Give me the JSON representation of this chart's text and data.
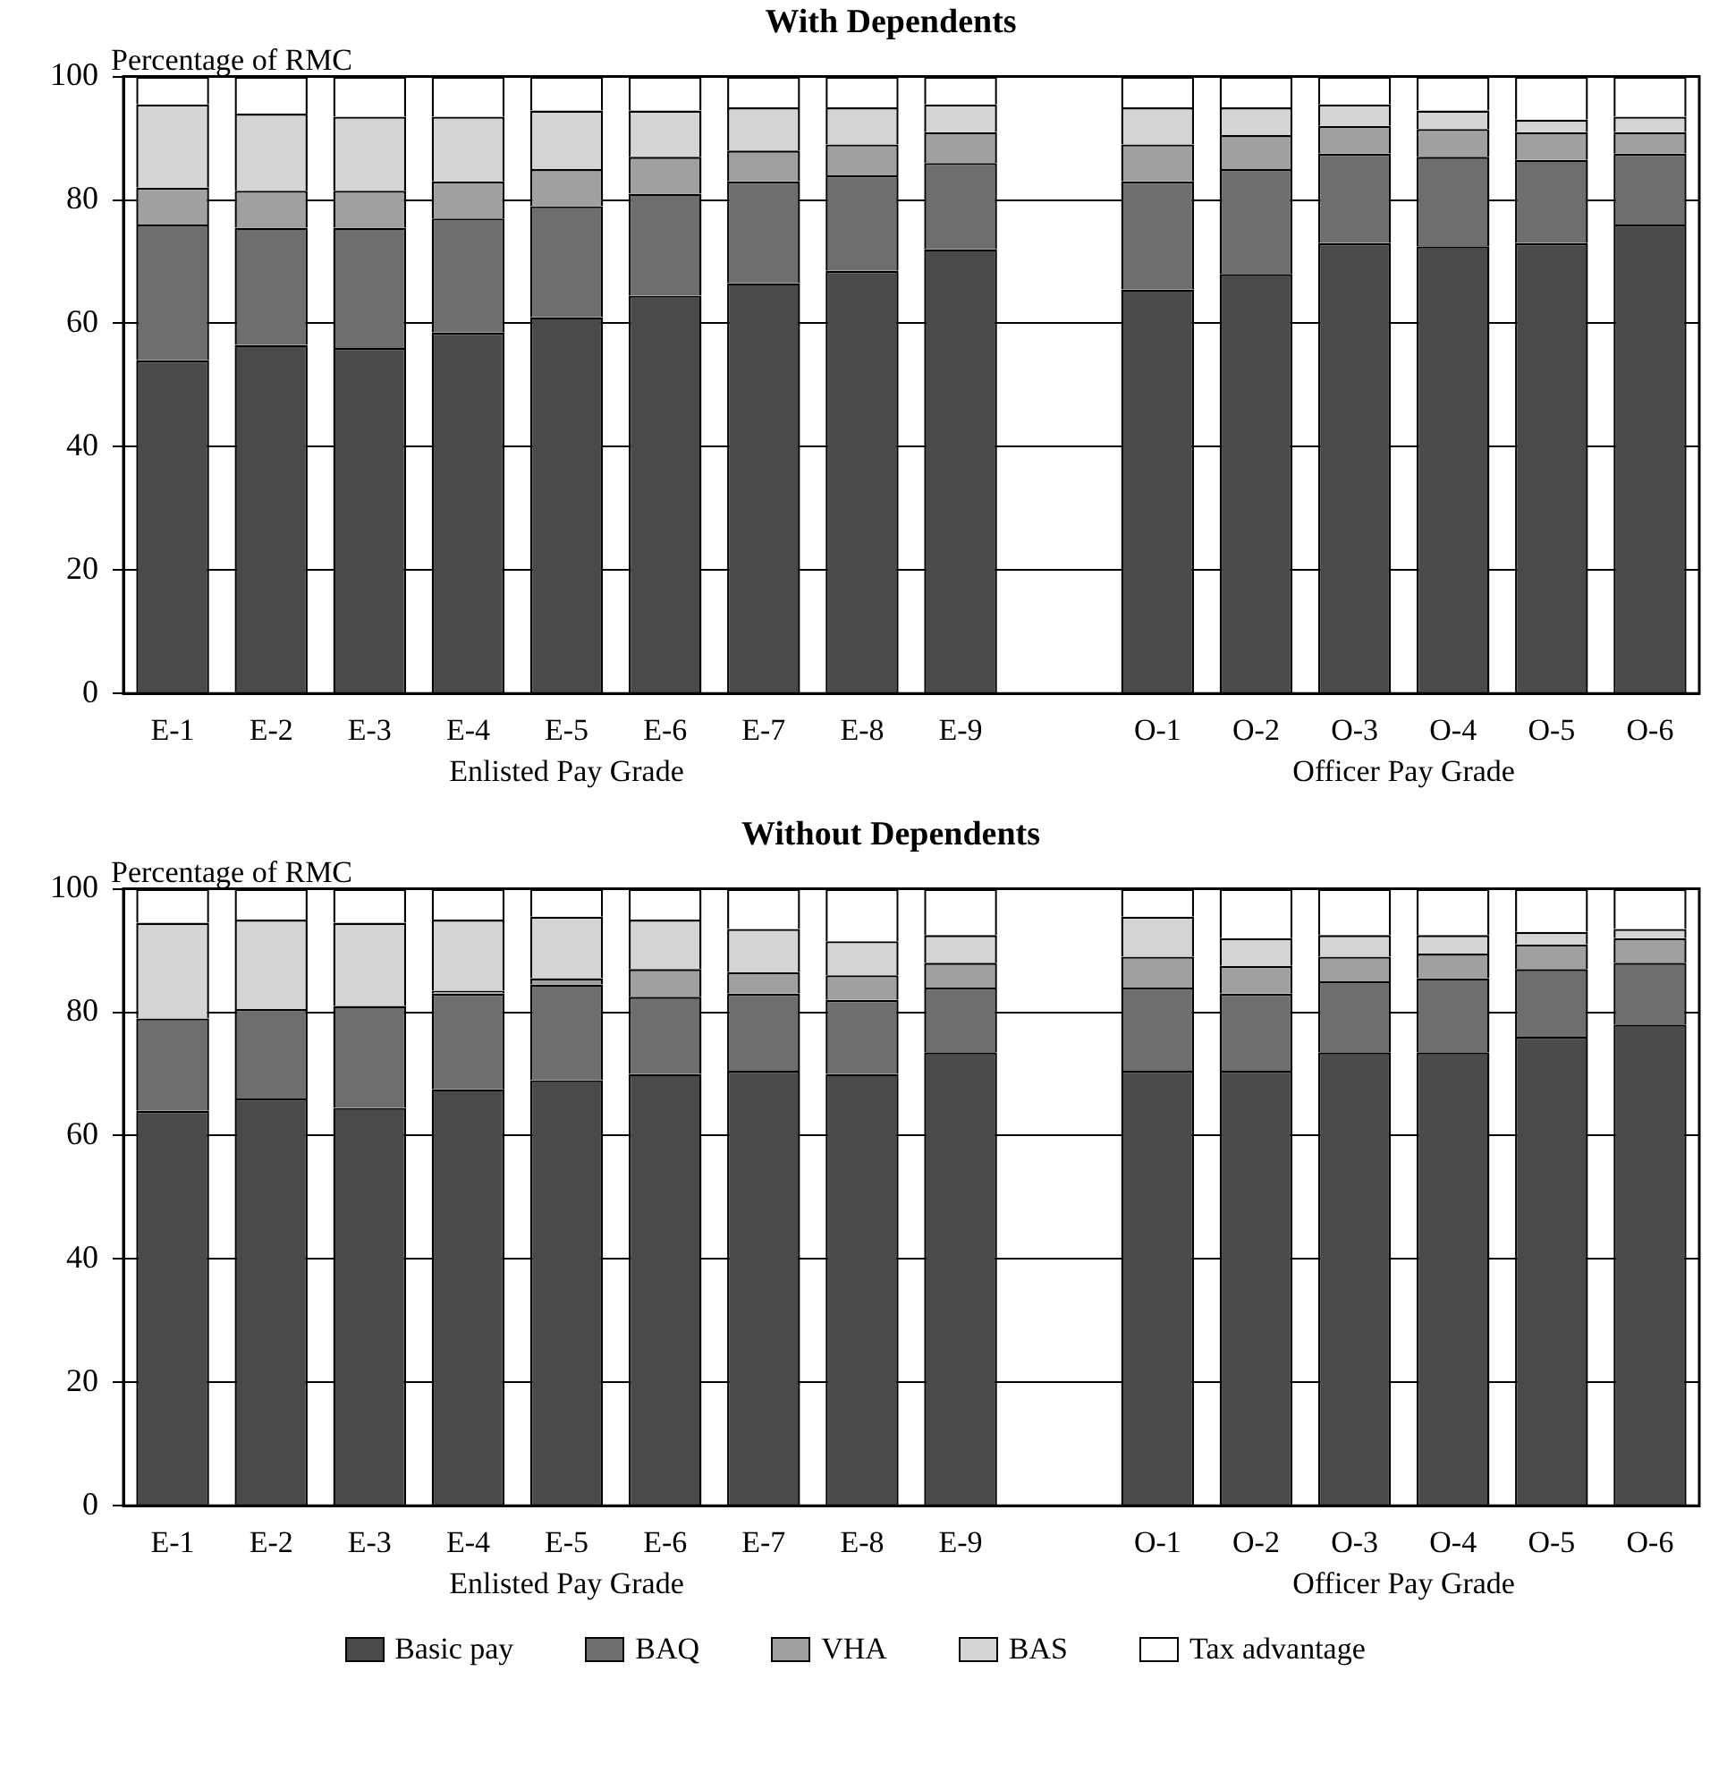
{
  "chart_data": [
    {
      "type": "bar",
      "title": "With Dependents",
      "ylabel": "Percentage of RMC",
      "stacked": true,
      "categories": [
        "E-1",
        "E-2",
        "E-3",
        "E-4",
        "E-5",
        "E-6",
        "E-7",
        "E-8",
        "E-9",
        null,
        "O-1",
        "O-2",
        "O-3",
        "O-4",
        "O-5",
        "O-6"
      ],
      "series": [
        {
          "color": "#4a4a4a",
          "values": [
            54,
            56.5,
            56,
            58.5,
            61,
            64.5,
            66.5,
            68.5,
            72,
            null,
            65.5,
            68,
            73,
            72.5,
            73,
            76
          ]
        },
        {
          "color": "#6e6e6e",
          "values": [
            22,
            19,
            19.5,
            18.5,
            18,
            16.5,
            16.5,
            15.5,
            14,
            null,
            17.5,
            17,
            14.5,
            14.5,
            13.5,
            11.5
          ]
        },
        {
          "color": "#a0a0a0",
          "values": [
            6,
            6,
            6,
            6,
            6,
            6,
            5,
            5,
            5,
            null,
            6,
            5.5,
            4.5,
            4.5,
            4.5,
            3.5
          ]
        },
        {
          "color": "#d4d4d4",
          "values": [
            13.5,
            12.5,
            12,
            10.5,
            9.5,
            7.5,
            7,
            6,
            4.5,
            null,
            6,
            4.5,
            3.5,
            3,
            2,
            2.5
          ]
        },
        {
          "color": "#ffffff",
          "values": [
            4.5,
            6,
            6.5,
            6.5,
            5.5,
            5.5,
            5,
            5,
            4.5,
            null,
            5,
            5,
            4.5,
            5.5,
            7,
            6.5
          ]
        }
      ],
      "ylim": [
        0,
        100
      ],
      "yticks": [
        0,
        20,
        40,
        60,
        80,
        100
      ],
      "grid": "y",
      "legend": false,
      "annotations": [
        "Enlisted Pay Grade",
        "Officer Pay Grade"
      ]
    },
    {
      "type": "bar",
      "title": "Without Dependents",
      "ylabel": "Percentage of RMC",
      "stacked": true,
      "categories": [
        "E-1",
        "E-2",
        "E-3",
        "E-4",
        "E-5",
        "E-6",
        "E-7",
        "E-8",
        "E-9",
        null,
        "O-1",
        "O-2",
        "O-3",
        "O-4",
        "O-5",
        "O-6"
      ],
      "series": [
        {
          "name": "Basic pay",
          "color": "#4a4a4a",
          "values": [
            64,
            66,
            64.5,
            67.5,
            69,
            70,
            70.5,
            70,
            73.5,
            null,
            70.5,
            70.5,
            73.5,
            73.5,
            76,
            78
          ]
        },
        {
          "name": "BAQ",
          "color": "#6e6e6e",
          "values": [
            15,
            14.5,
            16.5,
            15.5,
            15.5,
            12.5,
            12.5,
            12,
            10.5,
            null,
            13.5,
            12.5,
            11.5,
            12,
            11,
            10
          ]
        },
        {
          "name": "VHA",
          "color": "#a0a0a0",
          "values": [
            0,
            0,
            0,
            0.5,
            1,
            4.5,
            3.5,
            4,
            4,
            null,
            5,
            4.5,
            4,
            4,
            4,
            4
          ]
        },
        {
          "name": "BAS",
          "color": "#d4d4d4",
          "values": [
            15.5,
            14.5,
            13.5,
            11.5,
            10,
            8,
            7,
            5.5,
            4.5,
            null,
            6.5,
            4.5,
            3.5,
            3,
            2,
            1.5
          ]
        },
        {
          "name": "Tax advantage",
          "color": "#ffffff",
          "values": [
            5.5,
            5,
            5.5,
            5,
            4.5,
            5,
            6.5,
            8.5,
            7.5,
            null,
            4.5,
            8,
            7.5,
            7.5,
            7,
            6.5
          ]
        }
      ],
      "ylim": [
        0,
        100
      ],
      "yticks": [
        0,
        20,
        40,
        60,
        80,
        100
      ],
      "grid": "y",
      "legend": "bottom",
      "annotations": [
        "Enlisted Pay Grade",
        "Officer Pay Grade"
      ]
    }
  ]
}
